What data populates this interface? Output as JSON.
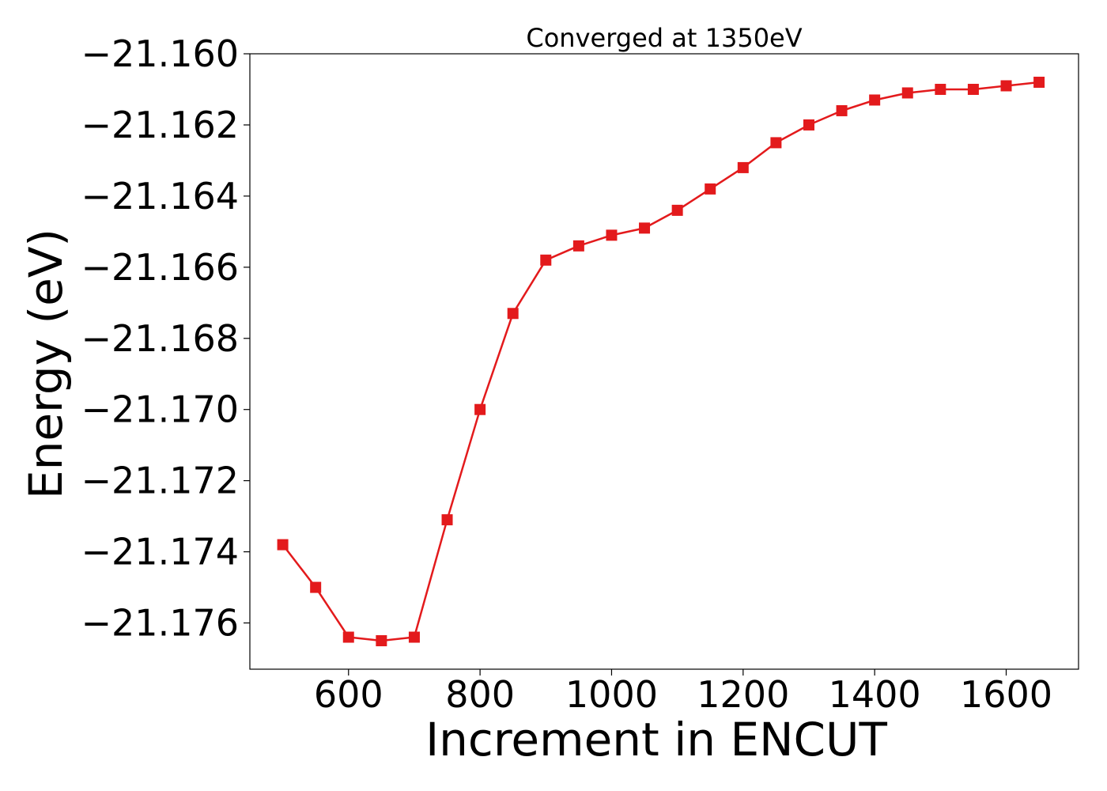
{
  "chart_data": {
    "type": "line",
    "title": "Converged at 1350eV",
    "xlabel": "Increment in ENCUT",
    "ylabel": "Energy (eV)",
    "xlim": [
      450,
      1710
    ],
    "ylim": [
      -21.1773,
      -21.16
    ],
    "xticks": [
      600,
      800,
      1000,
      1200,
      1400,
      1600
    ],
    "xtick_labels": [
      "600",
      "800",
      "1000",
      "1200",
      "1400",
      "1600"
    ],
    "yticks": [
      -21.176,
      -21.174,
      -21.172,
      -21.17,
      -21.168,
      -21.166,
      -21.164,
      -21.162,
      -21.16
    ],
    "ytick_labels": [
      "−21.176",
      "−21.174",
      "−21.172",
      "−21.170",
      "−21.168",
      "−21.166",
      "−21.164",
      "−21.162",
      "−21.160"
    ],
    "grid": false,
    "series": [
      {
        "color": "#e31a1c",
        "marker": "square",
        "x": [
          500,
          550,
          600,
          650,
          700,
          750,
          800,
          850,
          900,
          950,
          1000,
          1050,
          1100,
          1150,
          1200,
          1250,
          1300,
          1350,
          1400,
          1450,
          1500,
          1550,
          1600,
          1650
        ],
        "y": [
          -21.1738,
          -21.175,
          -21.1764,
          -21.1765,
          -21.1764,
          -21.1731,
          -21.17,
          -21.1673,
          -21.1658,
          -21.1654,
          -21.1651,
          -21.1649,
          -21.1644,
          -21.1638,
          -21.1632,
          -21.1625,
          -21.162,
          -21.1616,
          -21.1613,
          -21.1611,
          -21.161,
          -21.161,
          -21.1609,
          -21.1608
        ]
      }
    ]
  }
}
